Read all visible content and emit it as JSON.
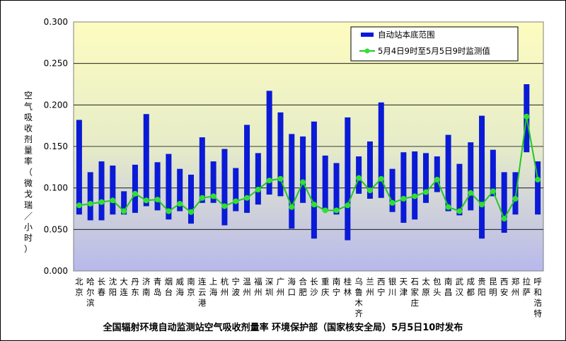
{
  "chart_data": {
    "type": "bar",
    "title": "全国辐射环境自动监测站空气吸收剂量率 环境保护部（国家核安全局）5月5日10时发布",
    "ylabel": "空气吸收剂量率（微戈瑞／小时）",
    "ylim": [
      0,
      0.3
    ],
    "yticks": [
      "0.000",
      "0.050",
      "0.100",
      "0.150",
      "0.200",
      "0.250",
      "0.300"
    ],
    "grid": true,
    "legend_position": "top-right",
    "colors": {
      "range_bar": "#0a1ad6",
      "line": "#20c820",
      "marker": "#30e030",
      "bg_top": "#fdfcc0",
      "bg_mid": "#e6ecc8",
      "bg_bottom": "#b8b8ec"
    },
    "categories": [
      "北京",
      "哈尔滨",
      "长春",
      "沈阳",
      "大连",
      "丹东",
      "济南",
      "青岛",
      "烟台",
      "威海",
      "南京",
      "连云港",
      "上海",
      "杭州",
      "宁波",
      "温州",
      "福州",
      "深圳",
      "广州",
      "海口",
      "合肥",
      "长沙",
      "重庆",
      "南宁",
      "桂林",
      "乌鲁木齐",
      "兰州",
      "西宁",
      "银川",
      "天津",
      "石家庄",
      "太原",
      "包头",
      "南昌",
      "武汉",
      "成都",
      "贵阳",
      "昆明",
      "西安",
      "郑州",
      "拉萨",
      "呼和浩特"
    ],
    "series": [
      {
        "name": "自动站本底范围",
        "kind": "range",
        "low": [
          0.068,
          0.061,
          0.061,
          0.068,
          0.068,
          0.07,
          0.078,
          0.073,
          0.062,
          0.072,
          0.057,
          0.082,
          0.082,
          0.055,
          0.072,
          0.07,
          0.08,
          0.092,
          0.09,
          0.051,
          0.082,
          0.039,
          0.072,
          0.068,
          0.037,
          0.093,
          0.087,
          0.088,
          0.071,
          0.058,
          0.062,
          0.082,
          0.095,
          0.072,
          0.067,
          0.073,
          0.039,
          0.09,
          0.046,
          0.068,
          0.143,
          0.068
        ],
        "high": [
          0.182,
          0.119,
          0.132,
          0.127,
          0.096,
          0.128,
          0.189,
          0.131,
          0.141,
          0.123,
          0.116,
          0.161,
          0.132,
          0.147,
          0.124,
          0.176,
          0.142,
          0.217,
          0.191,
          0.165,
          0.162,
          0.18,
          0.139,
          0.13,
          0.185,
          0.138,
          0.156,
          0.203,
          0.123,
          0.143,
          0.144,
          0.142,
          0.138,
          0.164,
          0.129,
          0.155,
          0.187,
          0.146,
          0.119,
          0.119,
          0.225,
          0.132
        ]
      },
      {
        "name": "5月4日9时至5月5日9时监测值",
        "kind": "line",
        "values": [
          0.079,
          0.081,
          0.083,
          0.085,
          0.072,
          0.093,
          0.085,
          0.086,
          0.072,
          0.081,
          0.071,
          0.088,
          0.09,
          0.078,
          0.084,
          0.088,
          0.098,
          0.109,
          0.111,
          0.077,
          0.107,
          0.08,
          0.073,
          0.073,
          0.079,
          0.112,
          0.097,
          0.111,
          0.082,
          0.087,
          0.09,
          0.095,
          0.11,
          0.077,
          0.072,
          0.094,
          0.08,
          0.096,
          0.063,
          0.087,
          0.186,
          0.11
        ]
      }
    ]
  }
}
